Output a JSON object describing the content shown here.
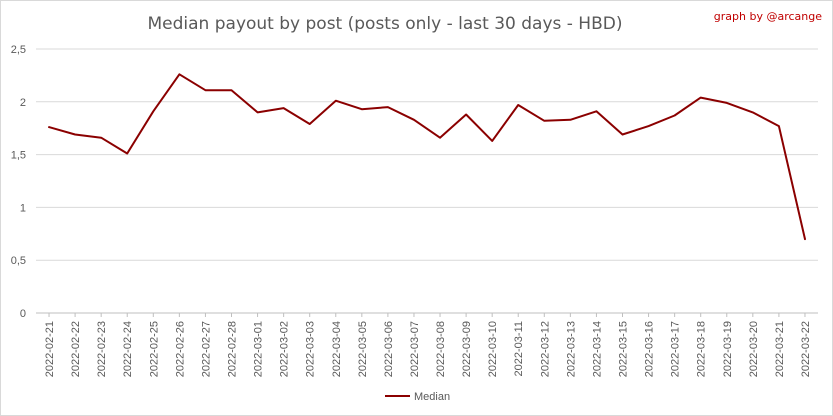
{
  "chart_data": {
    "type": "line",
    "title": "Median payout by post (posts only - last 30 days - HBD)",
    "watermark": "graph by @arcange",
    "xlabel": "",
    "ylabel": "",
    "ylim": [
      0,
      2.5
    ],
    "yticks": [
      "0",
      "0,5",
      "1",
      "1,5",
      "2",
      "2,5"
    ],
    "grid": true,
    "legend_position": "bottom",
    "categories": [
      "2022-02-21",
      "2022-02-22",
      "2022-02-23",
      "2022-02-24",
      "2022-02-25",
      "2022-02-26",
      "2022-02-27",
      "2022-02-28",
      "2022-03-01",
      "2022-03-02",
      "2022-03-03",
      "2022-03-04",
      "2022-03-05",
      "2022-03-06",
      "2022-03-07",
      "2022-03-08",
      "2022-03-09",
      "2022-03-10",
      "2022-03-11",
      "2022-03-12",
      "2022-03-13",
      "2022-03-14",
      "2022-03-15",
      "2022-03-16",
      "2022-03-17",
      "2022-03-18",
      "2022-03-19",
      "2022-03-20",
      "2022-03-21",
      "2022-03-22"
    ],
    "series": [
      {
        "name": "Median",
        "color": "#8b0000",
        "values": [
          1.76,
          1.69,
          1.66,
          1.51,
          1.91,
          2.26,
          2.11,
          2.11,
          1.9,
          1.94,
          1.79,
          2.01,
          1.93,
          1.95,
          1.83,
          1.66,
          1.88,
          1.63,
          1.97,
          1.82,
          1.83,
          1.91,
          1.69,
          1.77,
          1.87,
          2.04,
          1.99,
          1.9,
          1.77,
          0.7
        ]
      }
    ]
  }
}
